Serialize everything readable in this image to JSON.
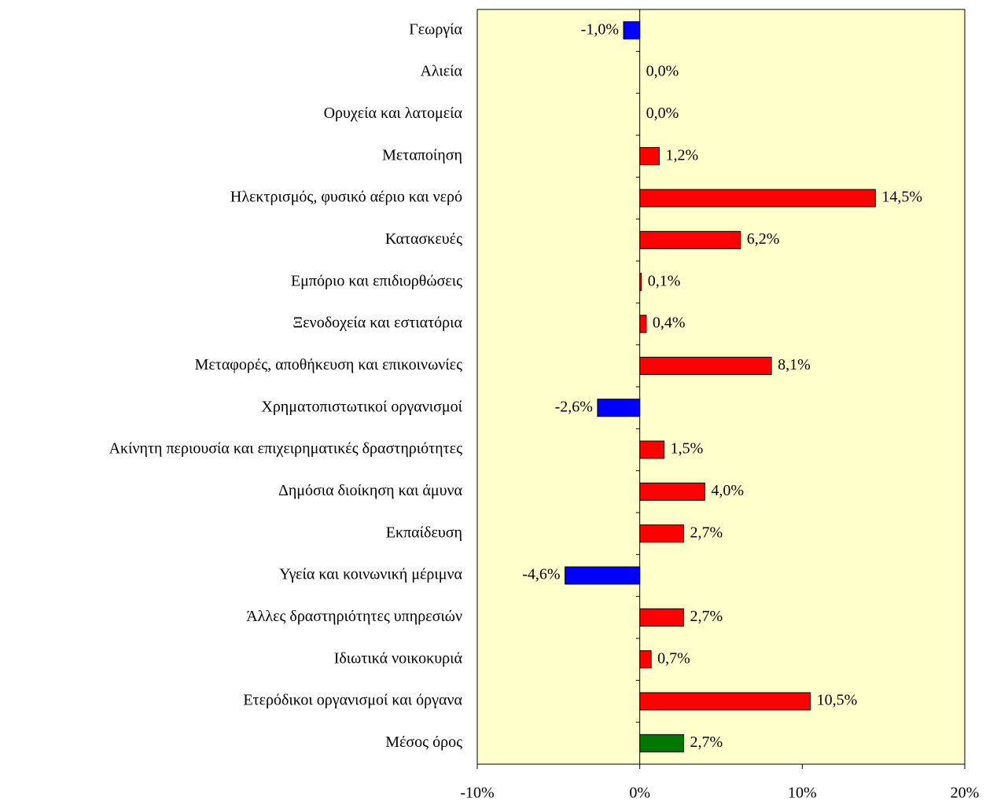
{
  "chart_data": {
    "type": "bar",
    "orientation": "horizontal",
    "categories": [
      "Γεωργία",
      "Αλιεία",
      "Ορυχεία και λατομεία",
      "Μεταποίηση",
      "Ηλεκτρισμός, φυσικό αέριο και νερό",
      "Κατασκευές",
      "Εμπόριο και επιδιορθώσεις",
      "Ξενοδοχεία και εστιατόρια",
      "Μεταφορές, αποθήκευση και επικοινωνίες",
      "Χρηματοπιστωτικοί οργανισμοί",
      "Ακίνητη περιουσία και επιχειρηματικές δραστηριότητες",
      "Δημόσια διοίκηση και άμυνα",
      "Εκπαίδευση",
      "Υγεία και κοινωνική μέριμνα",
      "Άλλες δραστηριότητες υπηρεσιών",
      "Ιδιωτικά νοικοκυριά",
      "Ετερόδικοι οργανισμοί και όργανα",
      "Μέσος όρος"
    ],
    "values": [
      -1.0,
      0.0,
      0.0,
      1.2,
      14.5,
      6.2,
      0.1,
      0.4,
      8.1,
      -2.6,
      1.5,
      4.0,
      2.7,
      -4.6,
      2.7,
      0.7,
      10.5,
      2.7
    ],
    "value_labels": [
      "-1,0%",
      "0,0%",
      "0,0%",
      "1,2%",
      "14,5%",
      "6,2%",
      "0,1%",
      "0,4%",
      "8,1%",
      "-2,6%",
      "1,5%",
      "4,0%",
      "2,7%",
      "-4,6%",
      "2,7%",
      "0,7%",
      "10,5%",
      "2,7%"
    ],
    "colors": [
      "#0000ff",
      "#ff0000",
      "#ff0000",
      "#ff0000",
      "#ff0000",
      "#ff0000",
      "#ff0000",
      "#ff0000",
      "#ff0000",
      "#0000ff",
      "#ff0000",
      "#ff0000",
      "#ff0000",
      "#0000ff",
      "#ff0000",
      "#ff0000",
      "#ff0000",
      "#007700"
    ],
    "xlim": [
      -10,
      20
    ],
    "xticks": [
      {
        "value": -10,
        "label": "-10%"
      },
      {
        "value": 0,
        "label": "0%"
      },
      {
        "value": 10,
        "label": "10%"
      },
      {
        "value": 20,
        "label": "20%"
      }
    ],
    "plot_background": "#ffffcc"
  }
}
